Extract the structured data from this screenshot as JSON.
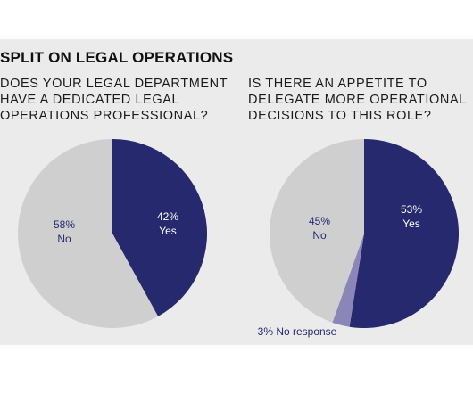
{
  "colors": {
    "panel_bg": "#ebebeb",
    "yes": "#26296e",
    "no": "#cfcfcf",
    "no_response": "#8a86b8",
    "label_on_dark": "#ffffff",
    "label_on_light": "#26296e"
  },
  "heading": "SPLIT ON LEGAL OPERATIONS",
  "questions": {
    "left": [
      "DOES YOUR LEGAL DEPARTMENT",
      "HAVE A DEDICATED LEGAL",
      "OPERATIONS PROFESSIONAL?"
    ],
    "right": [
      "IS THERE AN APPETITE TO",
      "DELEGATE MORE OPERATIONAL",
      "DECISIONS TO THIS ROLE?"
    ]
  },
  "chart_data": [
    {
      "type": "pie",
      "title": "DOES YOUR LEGAL DEPARTMENT HAVE A DEDICATED LEGAL OPERATIONS PROFESSIONAL?",
      "slices": [
        {
          "label": "Yes",
          "pct_label": "42%",
          "value": 42,
          "color": "#26296e"
        },
        {
          "label": "No",
          "pct_label": "58%",
          "value": 58,
          "color": "#cfcfcf"
        }
      ]
    },
    {
      "type": "pie",
      "title": "IS THERE AN APPETITE TO DELEGATE MORE OPERATIONAL DECISIONS TO THIS ROLE?",
      "slices": [
        {
          "label": "Yes",
          "pct_label": "53%",
          "value": 53,
          "color": "#26296e"
        },
        {
          "label": "No response",
          "pct_label": "3%",
          "value": 3,
          "color": "#8a86b8"
        },
        {
          "label": "No",
          "pct_label": "45%",
          "value": 45,
          "color": "#cfcfcf"
        }
      ]
    }
  ]
}
